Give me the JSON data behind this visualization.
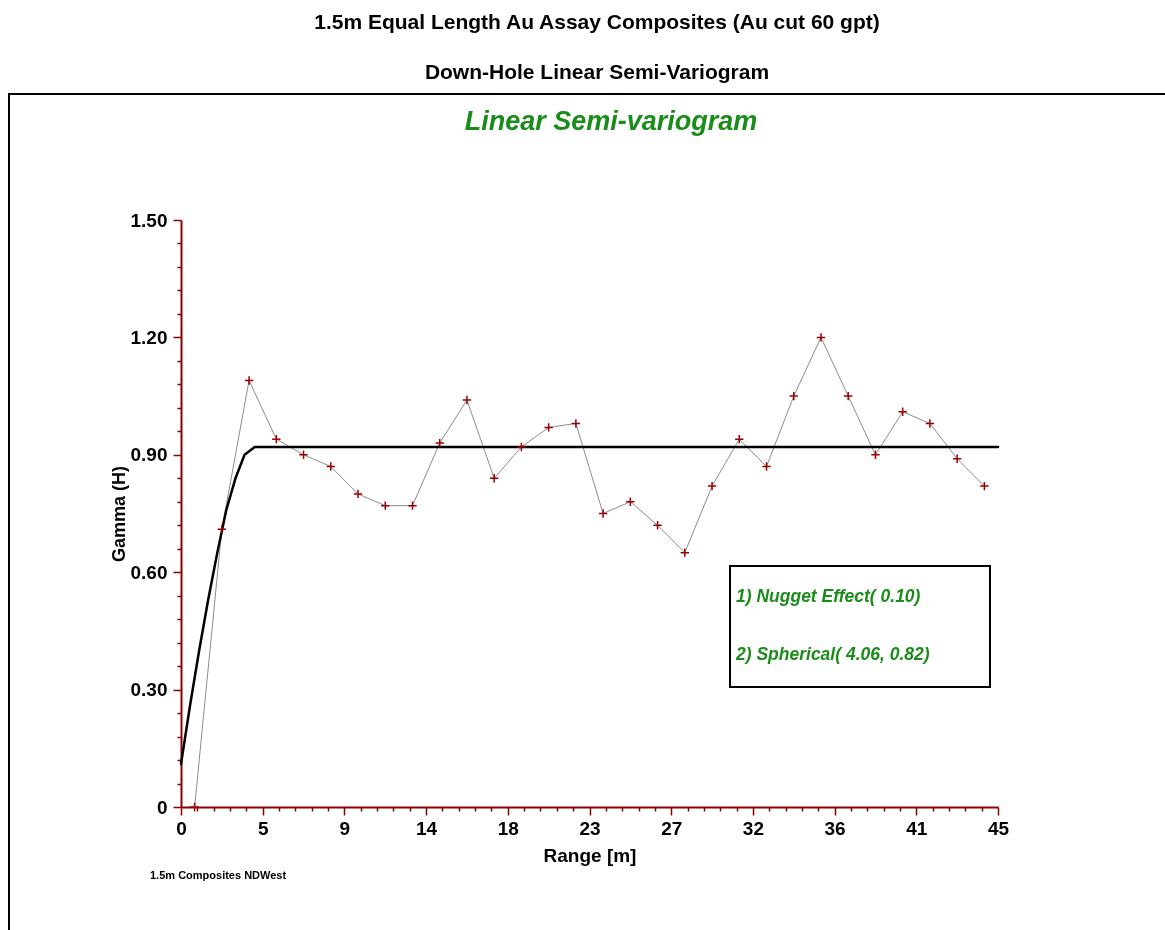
{
  "chart_data": {
    "type": "line",
    "title": "1.5m Equal Length Au Assay Composites (Au cut 60 gpt)",
    "subtitle": "Down-Hole Linear Semi-Variogram",
    "xlabel": "Range [m]",
    "ylabel": "Gamma (H)",
    "annotations": [
      "Linear Semi-variogram",
      "1) Nugget Effect( 0.10)",
      "2) Spherical( 4.06, 0.82)",
      "1.5m Composites NDWest"
    ],
    "series": [
      {
        "type": "line",
        "color": "#8c8c8c",
        "marker": "none",
        "x": [
          0.75,
          2.25,
          3.75,
          5.25,
          6.75,
          8.25,
          9.75,
          11.25,
          12.75,
          14.25,
          15.75,
          17.25,
          18.75,
          20.25,
          21.75,
          23.25,
          24.75,
          26.25,
          27.75,
          29.25,
          30.75,
          32.25,
          33.75,
          35.25,
          36.75,
          38.25,
          39.75,
          41.25,
          42.75,
          44.25
        ],
        "values": [
          0,
          0.71,
          1.09,
          0.94,
          0.9,
          0.87,
          0.8,
          0.77,
          0.77,
          0.93,
          1.04,
          0.84,
          0.92,
          0.97,
          0.98,
          0.75,
          0.78,
          0.72,
          0.65,
          0.82,
          0.94,
          0.87,
          1.05,
          1.2,
          1.05,
          0.9,
          1.01,
          0.98,
          0.89,
          0.82
        ]
      },
      {
        "type": "line",
        "color": "#000000",
        "marker": "none",
        "x": [
          0,
          0.5,
          1,
          1.5,
          2,
          2.5,
          3,
          3.5,
          4.06,
          45
        ],
        "values": [
          0.11,
          0.26,
          0.4,
          0.53,
          0.65,
          0.76,
          0.84,
          0.9,
          0.92,
          0.92
        ]
      },
      {
        "type": "scatter",
        "color": "#9b0000",
        "marker": "cross",
        "x": [
          0.75,
          2.25,
          3.75,
          5.25,
          6.75,
          8.25,
          9.75,
          11.25,
          12.75,
          14.25,
          15.75,
          17.25,
          18.75,
          20.25,
          21.75,
          23.25,
          24.75,
          26.25,
          27.75,
          29.25,
          30.75,
          32.25,
          33.75,
          35.25,
          36.75,
          38.25,
          39.75,
          41.25,
          42.75,
          44.25
        ],
        "values": [
          0,
          0.71,
          1.09,
          0.94,
          0.9,
          0.87,
          0.8,
          0.77,
          0.77,
          0.93,
          1.04,
          0.84,
          0.92,
          0.97,
          0.98,
          0.75,
          0.78,
          0.72,
          0.65,
          0.82,
          0.94,
          0.87,
          1.05,
          1.2,
          1.05,
          0.9,
          1.01,
          0.98,
          0.89,
          0.82
        ]
      }
    ],
    "xlim": [
      0,
      45
    ],
    "xticks": [
      0,
      {
        "value": 0.9,
        "label": null
      },
      {
        "value": 1.8,
        "label": null
      },
      {
        "value": 2.7,
        "label": null
      },
      {
        "value": 3.6,
        "label": null
      },
      {
        "value": 4.5,
        "label": "5"
      },
      {
        "value": 5.4,
        "label": null
      },
      {
        "value": 6.3,
        "label": null
      },
      {
        "value": 7.2,
        "label": null
      },
      {
        "value": 8.1,
        "label": null
      },
      9,
      {
        "value": 9.9,
        "label": null
      },
      {
        "value": 10.8,
        "label": null
      },
      {
        "value": 11.7,
        "label": null
      },
      {
        "value": 12.6,
        "label": null
      },
      {
        "value": 13.5,
        "label": "14"
      },
      {
        "value": 14.4,
        "label": null
      },
      {
        "value": 15.3,
        "label": null
      },
      {
        "value": 16.2,
        "label": null
      },
      {
        "value": 17.1,
        "label": null
      },
      18,
      {
        "value": 18.9,
        "label": null
      },
      {
        "value": 19.8,
        "label": null
      },
      {
        "value": 20.7,
        "label": null
      },
      {
        "value": 21.6,
        "label": null
      },
      {
        "value": 22.5,
        "label": "23"
      },
      {
        "value": 23.4,
        "label": null
      },
      {
        "value": 24.3,
        "label": null
      },
      {
        "value": 25.2,
        "label": null
      },
      {
        "value": 26.1,
        "label": null
      },
      27,
      {
        "value": 27.9,
        "label": null
      },
      {
        "value": 28.8,
        "label": null
      },
      {
        "value": 29.7,
        "label": null
      },
      {
        "value": 30.6,
        "label": null
      },
      {
        "value": 31.5,
        "label": "32"
      },
      {
        "value": 32.4,
        "label": null
      },
      {
        "value": 33.3,
        "label": null
      },
      {
        "value": 34.2,
        "label": null
      },
      {
        "value": 35.1,
        "label": null
      },
      36,
      {
        "value": 36.9,
        "label": null
      },
      {
        "value": 37.8,
        "label": null
      },
      {
        "value": 38.7,
        "label": null
      },
      {
        "value": 39.6,
        "label": null
      },
      {
        "value": 40.5,
        "label": "41"
      },
      {
        "value": 41.4,
        "label": null
      },
      {
        "value": 42.3,
        "label": null
      },
      {
        "value": 43.2,
        "label": null
      },
      {
        "value": 44.1,
        "label": null
      },
      45
    ],
    "ylim": [
      0,
      1.5
    ],
    "yticks": [
      0,
      {
        "value": 0.06,
        "label": null
      },
      {
        "value": 0.12,
        "label": null
      },
      {
        "value": 0.18,
        "label": null
      },
      {
        "value": 0.24,
        "label": null
      },
      {
        "value": 0.3,
        "label": "0.30"
      },
      {
        "value": 0.36,
        "label": null
      },
      {
        "value": 0.42,
        "label": null
      },
      {
        "value": 0.48,
        "label": null
      },
      {
        "value": 0.54,
        "label": null
      },
      {
        "value": 0.6,
        "label": "0.60"
      },
      {
        "value": 0.66,
        "label": null
      },
      {
        "value": 0.72,
        "label": null
      },
      {
        "value": 0.78,
        "label": null
      },
      {
        "value": 0.84,
        "label": null
      },
      {
        "value": 0.9,
        "label": "0.90"
      },
      {
        "value": 0.96,
        "label": null
      },
      {
        "value": 1.02,
        "label": null
      },
      {
        "value": 1.08,
        "label": null
      },
      {
        "value": 1.14,
        "label": null
      },
      {
        "value": 1.2,
        "label": "1.20"
      },
      {
        "value": 1.26,
        "label": null
      },
      {
        "value": 1.32,
        "label": null
      },
      {
        "value": 1.38,
        "label": null
      },
      {
        "value": 1.44,
        "label": null
      },
      {
        "value": 1.5,
        "label": "1.50"
      }
    ]
  }
}
